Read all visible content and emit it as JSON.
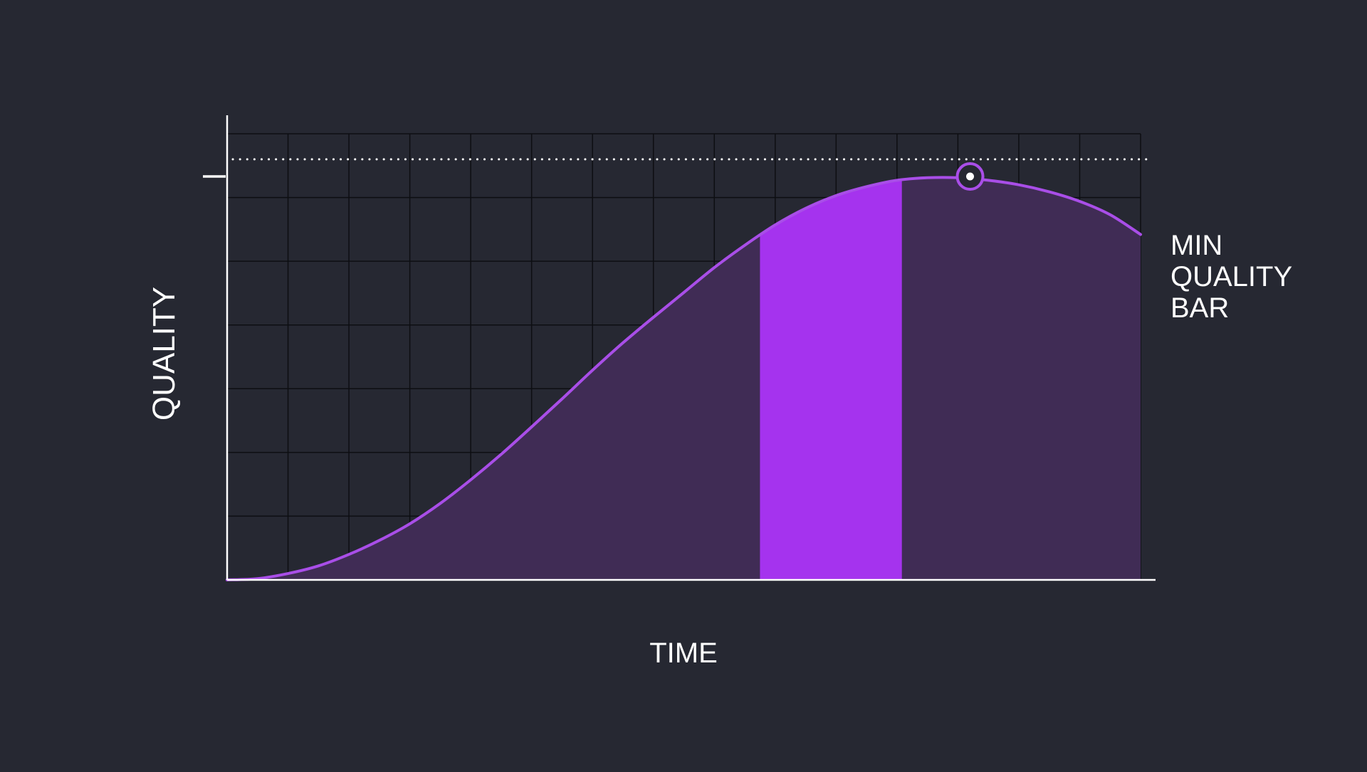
{
  "colors": {
    "background": "#262832",
    "grid": "#0d0e12",
    "axis": "#ffffff",
    "curve": "#a94ee8",
    "area": "#402c55",
    "highlight": "#a533ee",
    "text": "#ffffff"
  },
  "chart_data": {
    "type": "area",
    "title": "",
    "xlabel": "TIME",
    "ylabel": "QUALITY",
    "grid": true,
    "grid_columns": 15,
    "grid_rows": 7,
    "xlim": [
      0,
      15
    ],
    "ylim": [
      0,
      7
    ],
    "series": [
      {
        "values": [
          [
            0,
            0.0
          ],
          [
            0.5,
            0.02
          ],
          [
            1,
            0.1
          ],
          [
            1.5,
            0.22
          ],
          [
            2,
            0.4
          ],
          [
            2.5,
            0.62
          ],
          [
            3,
            0.88
          ],
          [
            3.5,
            1.2
          ],
          [
            4,
            1.57
          ],
          [
            4.5,
            1.97
          ],
          [
            5,
            2.4
          ],
          [
            5.5,
            2.84
          ],
          [
            6,
            3.29
          ],
          [
            6.5,
            3.72
          ],
          [
            7,
            4.12
          ],
          [
            7.5,
            4.51
          ],
          [
            8,
            4.9
          ],
          [
            8.5,
            5.25
          ],
          [
            9,
            5.57
          ],
          [
            9.5,
            5.83
          ],
          [
            10,
            6.03
          ],
          [
            10.5,
            6.17
          ],
          [
            11,
            6.27
          ],
          [
            11.5,
            6.31
          ],
          [
            12,
            6.31
          ],
          [
            12.5,
            6.27
          ],
          [
            13,
            6.2
          ],
          [
            13.5,
            6.09
          ],
          [
            14,
            5.94
          ],
          [
            14.5,
            5.73
          ],
          [
            15,
            5.42
          ]
        ]
      }
    ],
    "highlight_range": [
      8.75,
      11.08
    ],
    "peak_marker": {
      "x": 12.2,
      "y": 6.33
    },
    "min_quality_bar": {
      "y": 6.6,
      "label_lines": [
        "MIN",
        "QUALITY",
        "BAR"
      ]
    },
    "y_tick_mark": 6.33
  }
}
